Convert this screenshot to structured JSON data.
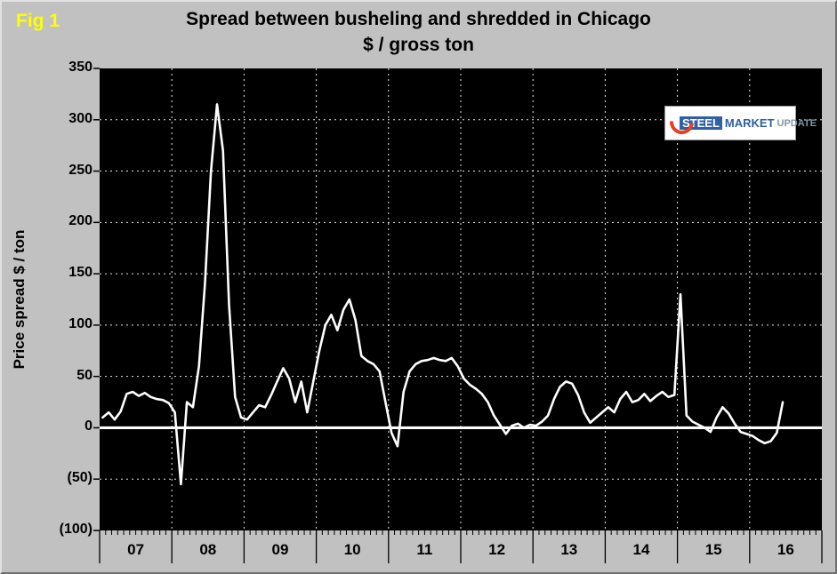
{
  "figure": {
    "fig_label": "Fig 1",
    "title_line1": "Spread between busheling and shredded in Chicago",
    "title_line2": "$ / gross ton"
  },
  "y_axis": {
    "title": "Price spread $ / ton",
    "tick_labels": [
      "350",
      "300",
      "250",
      "200",
      "150",
      "100",
      "50",
      "0",
      "(50)",
      "(100)"
    ],
    "tick_values": [
      350,
      300,
      250,
      200,
      150,
      100,
      50,
      0,
      -50,
      -100
    ]
  },
  "x_axis": {
    "tick_labels": [
      "07",
      "08",
      "09",
      "10",
      "11",
      "12",
      "13",
      "14",
      "15",
      "16"
    ]
  },
  "logo": {
    "word1": "STEEL",
    "word2": "MARKET",
    "word3": "UPDATE"
  },
  "colors": {
    "background": "#c1c1c1",
    "plot_background": "#000000",
    "line": "#ffffff",
    "zero_line": "#ffffff",
    "grid": "#ffffff",
    "tick": "#000000",
    "fig_label": "#ffff00",
    "logo_blue": "#2f5fa5",
    "logo_gray": "#8195a9",
    "logo_orange": "#e8401c"
  },
  "chart_data": {
    "type": "line",
    "title": "Spread between busheling and shredded in Chicago",
    "subtitle": "$ / gross ton",
    "ylabel": "Price spread $ / ton",
    "ylim": [
      -100,
      350
    ],
    "y_tick_step": 50,
    "x_years": [
      2007,
      2017
    ],
    "x_tick_labels": [
      "07",
      "08",
      "09",
      "10",
      "11",
      "12",
      "13",
      "14",
      "15",
      "16"
    ],
    "grid": "dashed-white-on-black",
    "zero_line": true,
    "legend": "none",
    "series": [
      {
        "name": "Busheling minus shredded price spread ($/gross ton)",
        "start_month": "2007-01",
        "frequency": "monthly",
        "values": [
          10,
          15,
          8,
          16,
          33,
          35,
          31,
          34,
          30,
          28,
          27,
          24,
          15,
          -55,
          25,
          20,
          60,
          140,
          250,
          315,
          270,
          120,
          30,
          10,
          8,
          15,
          22,
          20,
          32,
          45,
          58,
          48,
          25,
          45,
          15,
          45,
          75,
          100,
          110,
          95,
          115,
          125,
          105,
          70,
          65,
          62,
          55,
          25,
          -5,
          -18,
          35,
          55,
          62,
          65,
          66,
          68,
          66,
          65,
          68,
          60,
          48,
          42,
          38,
          33,
          25,
          12,
          3,
          -6,
          2,
          4,
          0,
          3,
          2,
          6,
          12,
          28,
          40,
          45,
          43,
          32,
          15,
          5,
          10,
          15,
          20,
          15,
          28,
          35,
          25,
          27,
          33,
          26,
          31,
          35,
          30,
          32,
          130,
          12,
          6,
          3,
          0,
          -4,
          10,
          20,
          14,
          4,
          -4,
          -6,
          -8,
          -12,
          -15,
          -13,
          -5,
          25
        ]
      }
    ]
  }
}
